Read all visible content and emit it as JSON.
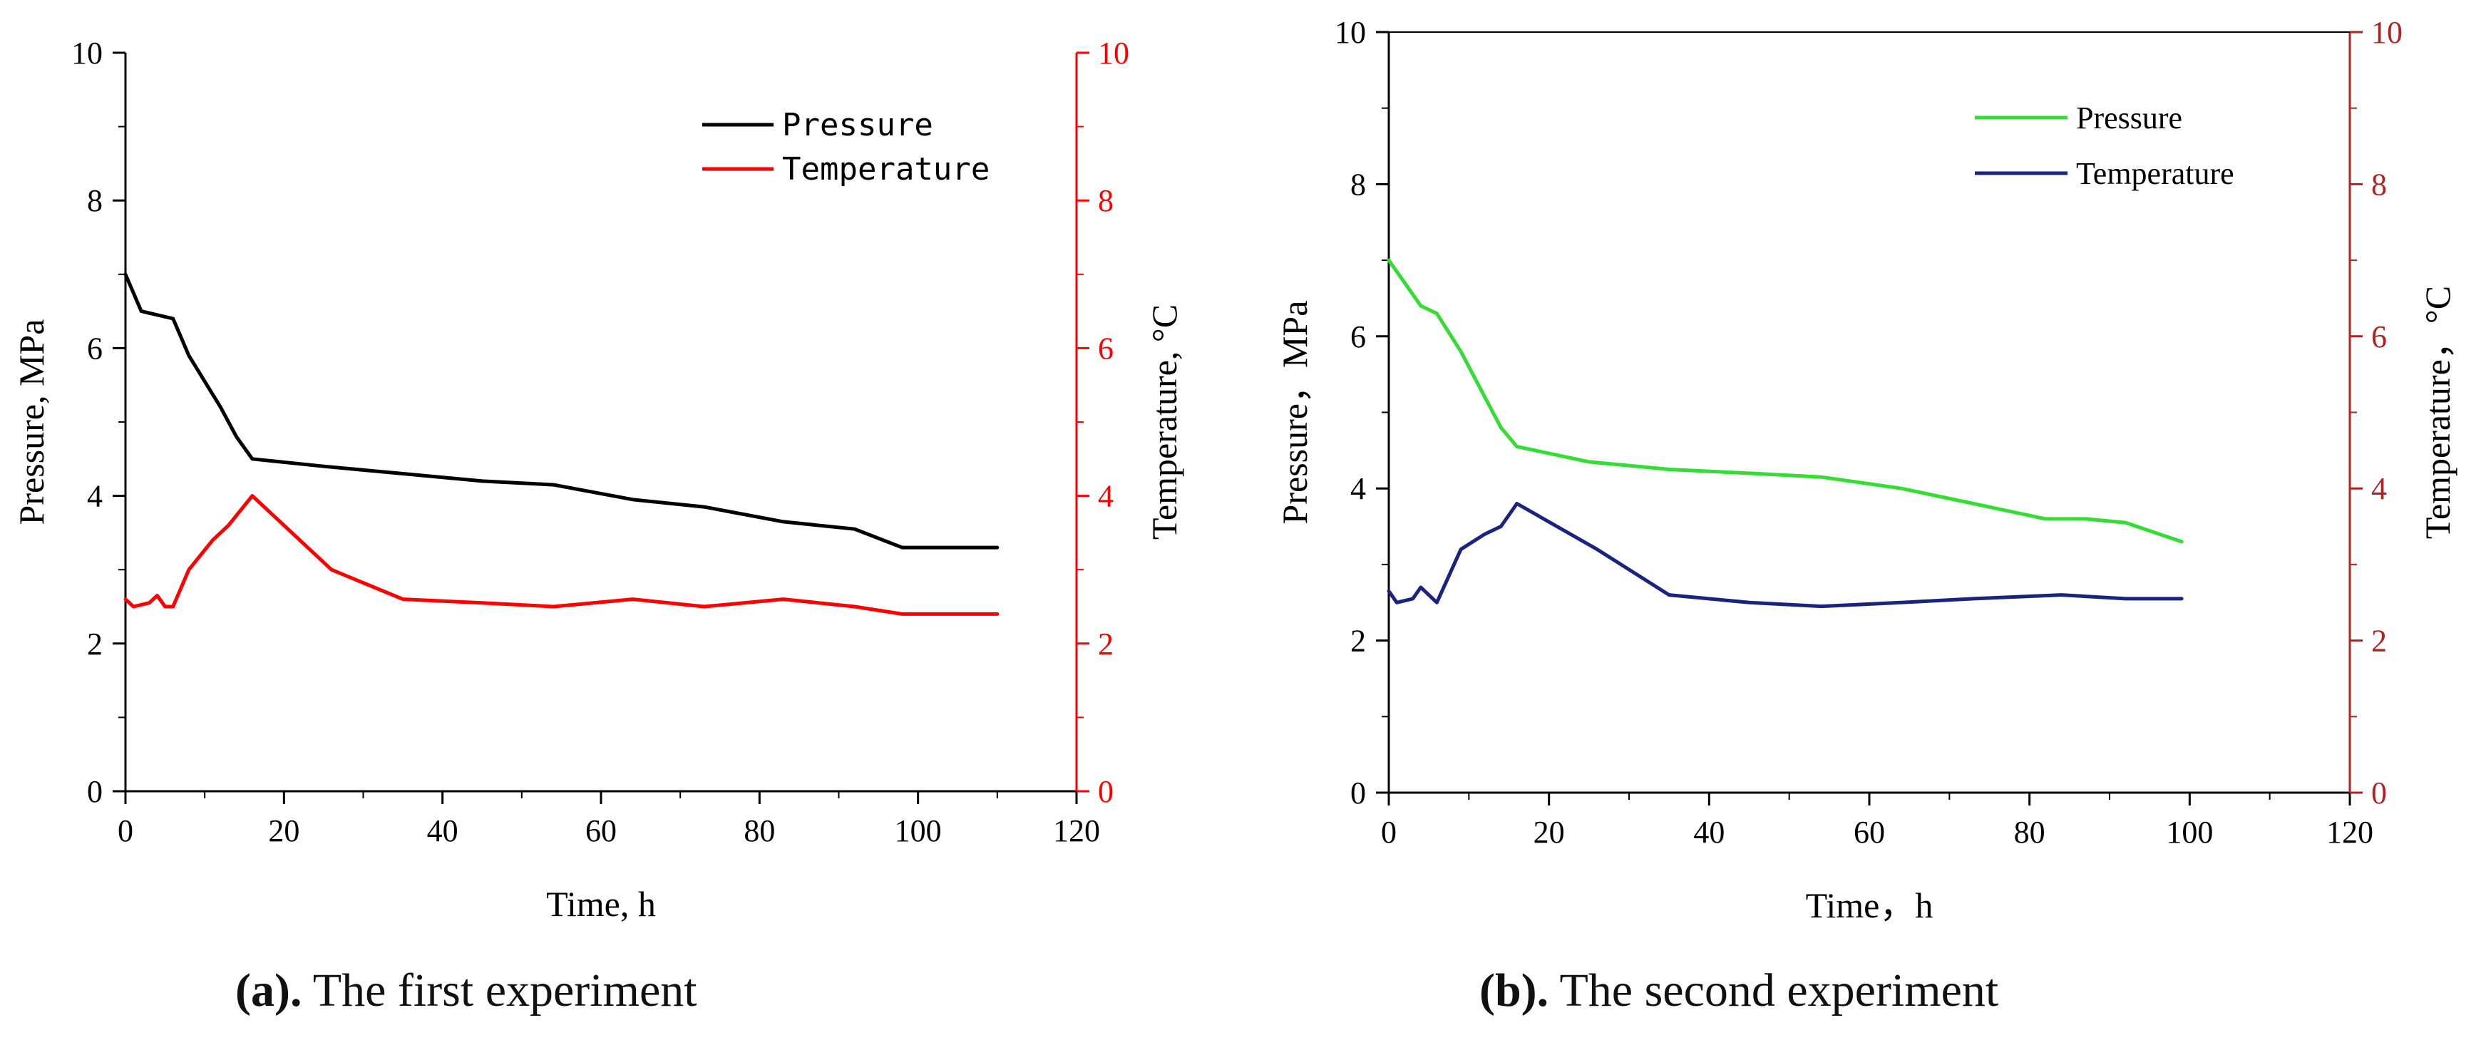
{
  "chart_data": [
    {
      "type": "line",
      "panel_label": "(a).",
      "caption": "The first experiment",
      "xlabel": "Time,  h",
      "ylabel_left": "Pressure,  MPa",
      "ylabel_right": "Temperature,  °C",
      "xlim": [
        0,
        120
      ],
      "ylim_left": [
        0,
        10
      ],
      "ylim_right": [
        0,
        10
      ],
      "x_ticks": [
        "0",
        "20",
        "40",
        "60",
        "80",
        "100",
        "120"
      ],
      "y_ticks_left": [
        "0",
        "2",
        "4",
        "6",
        "8",
        "10"
      ],
      "y_ticks_right": [
        "0",
        "2",
        "4",
        "6",
        "8",
        "10"
      ],
      "grid": false,
      "legend_position": "top-right",
      "series": [
        {
          "name": "Pressure",
          "color": "#000000",
          "axis": "left",
          "x": [
            0,
            2,
            4,
            6,
            8,
            12,
            14,
            16,
            25,
            35,
            45,
            54,
            64,
            73,
            83,
            92,
            98,
            104,
            110
          ],
          "y": [
            7.0,
            6.5,
            6.45,
            6.4,
            5.9,
            5.2,
            4.8,
            4.5,
            4.4,
            4.3,
            4.2,
            4.15,
            3.95,
            3.85,
            3.65,
            3.55,
            3.3,
            3.3,
            3.3
          ]
        },
        {
          "name": "Temperature",
          "color": "#ff0000",
          "axis": "right",
          "x": [
            0,
            1,
            3,
            4,
            5,
            6,
            8,
            11,
            13,
            16,
            20,
            26,
            35,
            45,
            54,
            64,
            73,
            83,
            92,
            98,
            104,
            110
          ],
          "y": [
            2.6,
            2.5,
            2.55,
            2.65,
            2.5,
            2.5,
            3.0,
            3.4,
            3.6,
            4.0,
            3.6,
            3.0,
            2.6,
            2.55,
            2.5,
            2.6,
            2.5,
            2.6,
            2.5,
            2.4,
            2.4,
            2.4
          ]
        }
      ]
    },
    {
      "type": "line",
      "panel_label": "(b).",
      "caption": "The second experiment",
      "xlabel": "Time，h",
      "ylabel_left": "Pressure，MPa",
      "ylabel_right": "Temperature，°C",
      "xlim": [
        0,
        120
      ],
      "ylim_left": [
        0,
        10
      ],
      "ylim_right": [
        0,
        10
      ],
      "x_ticks": [
        "0",
        "20",
        "40",
        "60",
        "80",
        "100",
        "120"
      ],
      "y_ticks_left": [
        "0",
        "2",
        "4",
        "6",
        "8",
        "10"
      ],
      "y_ticks_right": [
        "0",
        "2",
        "4",
        "6",
        "8",
        "10"
      ],
      "grid": false,
      "legend_position": "top-right",
      "series": [
        {
          "name": "Pressure",
          "color": "#33dd33",
          "axis": "left",
          "x": [
            0,
            2,
            4,
            6,
            9,
            12,
            14,
            16,
            25,
            35,
            45,
            54,
            64,
            73,
            82,
            87,
            92,
            99
          ],
          "y": [
            7.0,
            6.7,
            6.4,
            6.3,
            5.8,
            5.2,
            4.8,
            4.55,
            4.35,
            4.25,
            4.2,
            4.15,
            4.0,
            3.8,
            3.6,
            3.6,
            3.55,
            3.3
          ]
        },
        {
          "name": "Temperature",
          "color": "#1a237e",
          "axis": "right",
          "x": [
            0,
            1,
            3,
            4,
            6,
            9,
            12,
            14,
            16,
            26,
            35,
            45,
            54,
            64,
            73,
            84,
            92,
            99
          ],
          "y": [
            2.65,
            2.5,
            2.55,
            2.7,
            2.5,
            3.2,
            3.4,
            3.5,
            3.8,
            3.2,
            2.6,
            2.5,
            2.45,
            2.5,
            2.55,
            2.6,
            2.55,
            2.55
          ]
        }
      ]
    }
  ]
}
